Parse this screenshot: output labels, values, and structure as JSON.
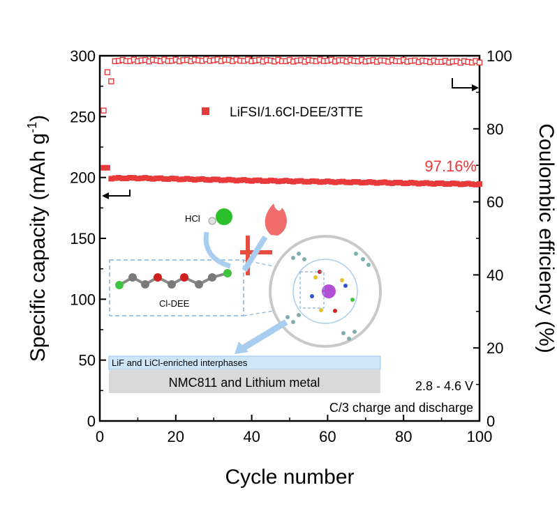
{
  "chart_data": {
    "type": "scatter",
    "xlabel": "Cycle number",
    "ylabel_left_main": "Specific capacity (mAh g",
    "ylabel_left_sup": "-1",
    "ylabel_left_end": ")",
    "ylabel_right": "Coulombic efficiency (%)",
    "xlim": [
      0,
      100
    ],
    "ylim_left": [
      0,
      300
    ],
    "ylim_right": [
      0,
      100
    ],
    "x_ticks": [
      "0",
      "20",
      "40",
      "60",
      "80",
      "100"
    ],
    "y_left_ticks": [
      "0",
      "50",
      "100",
      "150",
      "200",
      "250",
      "300"
    ],
    "y_right_ticks": [
      "0",
      "20",
      "40",
      "60",
      "80",
      "100"
    ],
    "legend": "LiFSI/1.6Cl-DEE/3TTE",
    "colors": {
      "series": "#e8393b",
      "axis": "#000000",
      "bar_interphase": "#cfe6f8",
      "bar_metal": "#d9d9d9",
      "circle": "#c9c9c9",
      "arrow": "#a9cdee"
    },
    "series": [
      {
        "name": "LiFSI/1.6Cl-DEE/3TTE",
        "axis": "left",
        "marker": "filled-square",
        "x": [
          1,
          2,
          3,
          5,
          10,
          20,
          30,
          40,
          50,
          60,
          70,
          80,
          90,
          100
        ],
        "y": [
          208,
          208,
          199,
          199.5,
          199.5,
          198.8,
          198.2,
          197.5,
          197,
          196.5,
          196,
          195.5,
          195,
          194.5
        ]
      },
      {
        "name": "Coulombic efficiency",
        "axis": "right",
        "marker": "open-square",
        "x": [
          1,
          2,
          3,
          4,
          5,
          10,
          20,
          30,
          40,
          50,
          60,
          70,
          80,
          90,
          100
        ],
        "y": [
          85,
          95.5,
          93,
          98.5,
          98.6,
          98.7,
          98.7,
          98.8,
          98.7,
          98.6,
          98.7,
          98.6,
          98.6,
          98.4,
          98.3
        ]
      }
    ],
    "annotations": {
      "retention": "97.16%",
      "voltage": "2.8 - 4.6 V",
      "rate": "C/3 charge and discharge"
    }
  },
  "inset": {
    "hcl_label": "HCl",
    "molecule_label": "Cl-DEE",
    "interphase_label": "LiF and LiCl-enriched interphases",
    "electrode_label": "NMC811 and Lithium metal"
  }
}
